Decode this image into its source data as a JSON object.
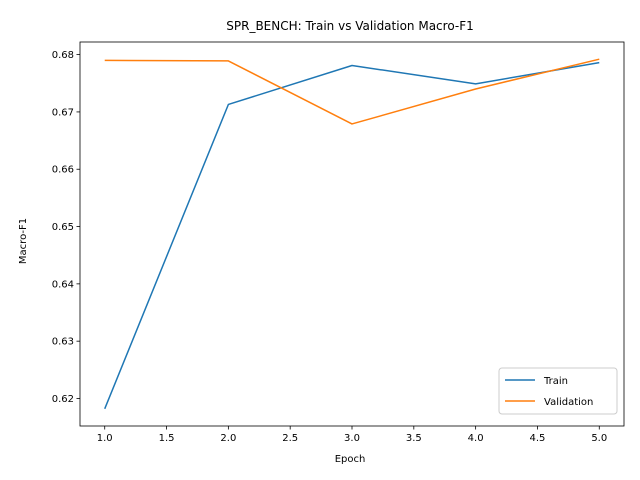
{
  "chart_data": {
    "type": "line",
    "title": "SPR_BENCH: Train vs Validation Macro-F1",
    "xlabel": "Epoch",
    "ylabel": "Macro-F1",
    "x": [
      1,
      2,
      3,
      4,
      5
    ],
    "series": [
      {
        "name": "Train",
        "color": "#1f77b4",
        "values": [
          0.6182,
          0.6713,
          0.6781,
          0.6749,
          0.6786
        ]
      },
      {
        "name": "Validation",
        "color": "#ff7f0e",
        "values": [
          0.679,
          0.6789,
          0.6679,
          0.674,
          0.6792
        ]
      }
    ],
    "xlim": [
      0.8,
      5.2
    ],
    "ylim": [
      0.6152,
      0.6822
    ],
    "xticks": [
      "1.0",
      "1.5",
      "2.0",
      "2.5",
      "3.0",
      "3.5",
      "4.0",
      "4.5",
      "5.0"
    ],
    "yticks": [
      "0.62",
      "0.63",
      "0.64",
      "0.65",
      "0.66",
      "0.67",
      "0.68"
    ],
    "legend_position": "lower-right",
    "grid": false
  }
}
